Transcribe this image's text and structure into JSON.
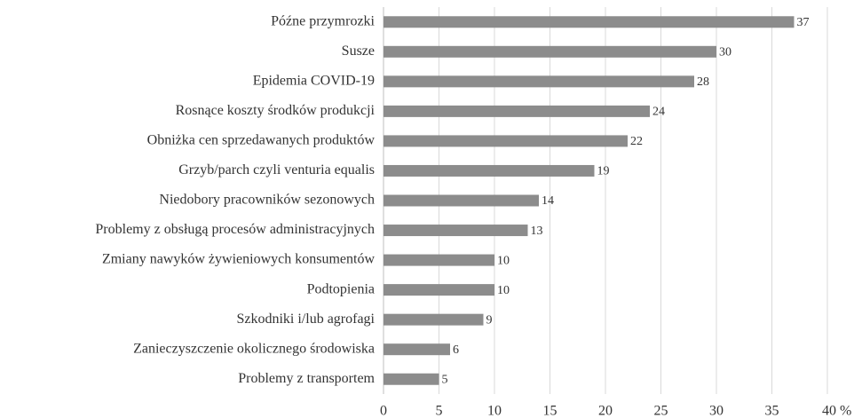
{
  "chart_data": {
    "type": "bar",
    "orientation": "horizontal",
    "categories": [
      "Późne przymrozki",
      "Susze",
      "Epidemia COVID-19",
      "Rosnące koszty środków produkcji",
      "Obniżka cen sprzedawanych produktów",
      "Grzyb/parch czyli venturia equalis",
      "Niedobory pracowników sezonowych",
      "Problemy z obsługą procesów administracyjnych",
      "Zmiany nawyków żywieniowych konsumentów",
      "Podtopienia",
      "Szkodniki i/lub agrofagi",
      "Zanieczyszczenie okolicznego środowiska",
      "Problemy z transportem"
    ],
    "values": [
      37,
      30,
      28,
      24,
      22,
      19,
      14,
      13,
      10,
      10,
      9,
      6,
      5
    ],
    "color": "#8c8c8c",
    "xlim": [
      0,
      40
    ],
    "xticks": [
      0,
      5,
      10,
      15,
      20,
      25,
      30,
      35,
      {
        "value": 40,
        "label": "40 %"
      }
    ],
    "grid": true
  }
}
